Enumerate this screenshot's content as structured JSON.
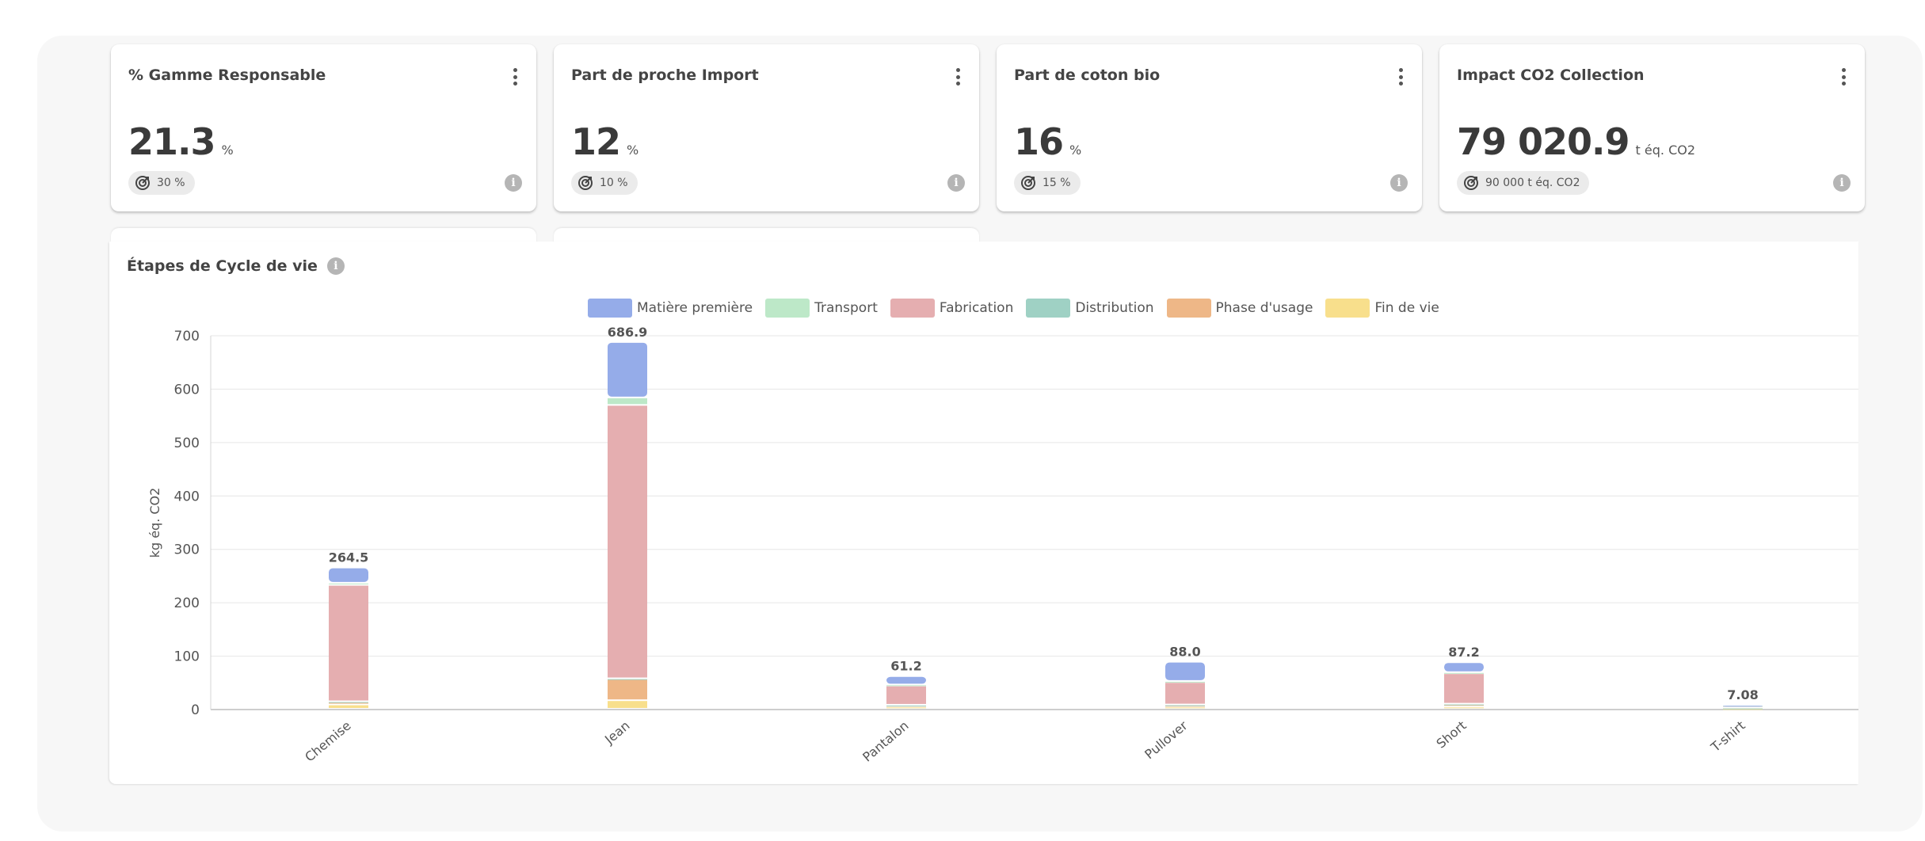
{
  "kpis": [
    {
      "title": "% Gamme Responsable",
      "value": "21.3",
      "unit": "%",
      "target": "30 %"
    },
    {
      "title": "Part de proche Import",
      "value": "12",
      "unit": "%",
      "target": "10 %"
    },
    {
      "title": "Part de coton bio",
      "value": "16",
      "unit": "%",
      "target": "15 %"
    },
    {
      "title": "Impact CO2 Collection",
      "value": "79 020.9",
      "unit": "t éq. CO2",
      "target": "90 000 t éq. CO2"
    }
  ],
  "icons": {
    "menu": "more-vertical-icon",
    "target": "target-icon",
    "info": "info-icon"
  },
  "chart": {
    "title": "Étapes de Cycle de vie"
  },
  "chart_data": {
    "type": "bar",
    "stacked": true,
    "ylabel": "kg éq. CO2",
    "ylim": [
      0,
      700
    ],
    "yticks": [
      0,
      100,
      200,
      300,
      400,
      500,
      600,
      700
    ],
    "grid": true,
    "legend_position": "top-center",
    "categories": [
      "Chemise",
      "Jean",
      "Pantalon",
      "Pullover",
      "Short",
      "T-shirt"
    ],
    "totals_labels": [
      "264.5",
      "686.9",
      "61.2",
      "88.0",
      "87.2",
      "7.08"
    ],
    "series": [
      {
        "name": "Fin de vie",
        "color": "#f8df8c",
        "values": [
          8,
          16,
          4,
          4,
          4,
          1
        ]
      },
      {
        "name": "Phase d'usage",
        "color": "#eeb787",
        "values": [
          5,
          40,
          3,
          3,
          5,
          1
        ]
      },
      {
        "name": "Distribution",
        "color": "#9fd1c4",
        "values": [
          1,
          1,
          0.5,
          1,
          0.5,
          0.1
        ]
      },
      {
        "name": "Fabrication",
        "color": "#e5aeb0",
        "values": [
          218,
          512,
          36,
          42,
          57,
          4.5
        ]
      },
      {
        "name": "Transport",
        "color": "#bde8c8",
        "values": [
          4,
          14,
          2,
          2,
          2,
          0.3
        ]
      },
      {
        "name": "Matière première",
        "color": "#95ace9",
        "values": [
          28.5,
          103.9,
          15.7,
          36,
          18.7,
          0.18
        ]
      }
    ],
    "legend_order": [
      "Matière première",
      "Transport",
      "Fabrication",
      "Distribution",
      "Phase d'usage",
      "Fin de vie"
    ]
  }
}
